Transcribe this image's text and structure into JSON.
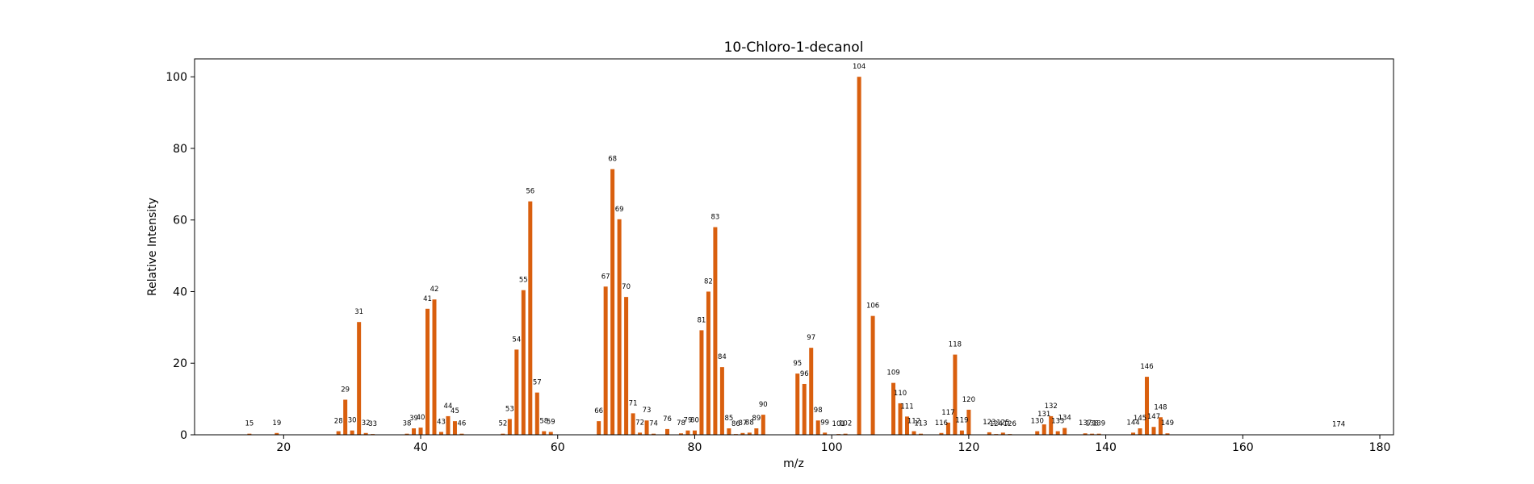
{
  "chart_data": {
    "type": "bar",
    "title": "10-Chloro-1-decanol",
    "xlabel": "m/z",
    "ylabel": "Relative Intensity",
    "xlim": [
      7,
      182
    ],
    "ylim": [
      0,
      105
    ],
    "xticks": [
      20,
      40,
      60,
      80,
      100,
      120,
      140,
      160,
      180
    ],
    "yticks": [
      0,
      20,
      40,
      60,
      80,
      100
    ],
    "bar_color": "#d95f0e",
    "grid": false,
    "legend": "none",
    "x": [
      15,
      19,
      28,
      29,
      30,
      31,
      32,
      33,
      38,
      39,
      40,
      41,
      42,
      43,
      44,
      45,
      46,
      52,
      53,
      54,
      55,
      56,
      57,
      58,
      59,
      66,
      67,
      68,
      69,
      70,
      71,
      72,
      73,
      74,
      76,
      78,
      79,
      80,
      81,
      82,
      83,
      84,
      85,
      86,
      87,
      88,
      89,
      90,
      95,
      96,
      97,
      98,
      99,
      101,
      102,
      104,
      106,
      109,
      110,
      111,
      112,
      113,
      116,
      117,
      118,
      119,
      120,
      123,
      124,
      125,
      126,
      130,
      131,
      132,
      133,
      134,
      137,
      138,
      139,
      144,
      145,
      146,
      147,
      148,
      149,
      174
    ],
    "values": [
      0.3,
      0.5,
      1.0,
      9.8,
      1.2,
      31.5,
      0.5,
      0.2,
      0.3,
      1.8,
      2.0,
      35.2,
      37.8,
      0.8,
      5.2,
      3.8,
      0.3,
      0.3,
      4.4,
      23.8,
      40.4,
      65.2,
      11.8,
      1.0,
      0.8,
      3.8,
      41.4,
      74.2,
      60.2,
      38.5,
      6.0,
      0.6,
      4.0,
      0.3,
      1.6,
      0.4,
      1.2,
      1.2,
      29.2,
      40.0,
      58.0,
      18.9,
      1.8,
      0.2,
      0.5,
      0.6,
      1.8,
      5.6,
      17.1,
      14.2,
      24.3,
      4.0,
      0.6,
      0.2,
      0.3,
      100.0,
      33.2,
      14.5,
      8.8,
      5.1,
      1.0,
      0.3,
      0.5,
      3.4,
      22.4,
      1.2,
      7.0,
      0.7,
      0.2,
      0.6,
      0.2,
      1.0,
      2.9,
      5.2,
      1.0,
      1.9,
      0.4,
      0.3,
      0.3,
      0.6,
      1.8,
      16.2,
      2.2,
      4.9,
      0.4,
      0.1
    ]
  }
}
